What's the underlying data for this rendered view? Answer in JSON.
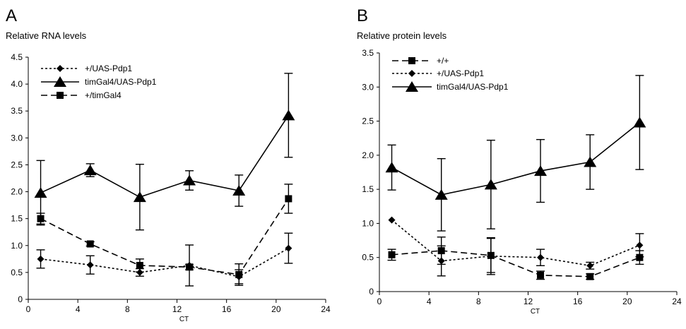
{
  "chart_data": [
    {
      "type": "line",
      "panel_label": "A",
      "ylabel": "Relative RNA levels",
      "xlabel": "CT",
      "xlim": [
        0,
        24
      ],
      "ylim": [
        0,
        4.5
      ],
      "xticks": [
        "0",
        "4",
        "8",
        "12",
        "16",
        "20",
        "24"
      ],
      "yticks": [
        "0",
        "0.5",
        "1.0",
        "1.5",
        "2.0",
        "2.5",
        "3.0",
        "3.5",
        "4.0",
        "4.5"
      ],
      "grid": false,
      "legend_position": "top-left",
      "x": [
        1,
        5,
        9,
        13,
        17,
        21
      ],
      "series": [
        {
          "name": "+/UAS-Pdp1",
          "marker": "diamond",
          "dash": "dotted",
          "values": [
            0.75,
            0.64,
            0.5,
            0.63,
            0.42,
            0.95
          ],
          "errors": [
            0.17,
            0.17,
            0.07,
            0.38,
            0.13,
            0.28
          ]
        },
        {
          "name": "timGal4/UAS-Pdp1",
          "marker": "triangle",
          "dash": "solid",
          "values": [
            1.98,
            2.4,
            1.9,
            2.21,
            2.02,
            3.42
          ],
          "errors": [
            0.6,
            0.12,
            0.61,
            0.18,
            0.29,
            0.78
          ]
        },
        {
          "name": "+/timGal4",
          "marker": "square",
          "dash": "dashed",
          "values": [
            1.5,
            1.03,
            0.63,
            0.6,
            0.46,
            1.87
          ],
          "errors": [
            0.1,
            0.04,
            0.12,
            0.05,
            0.2,
            0.27
          ]
        }
      ]
    },
    {
      "type": "line",
      "panel_label": "B",
      "ylabel": "Relative protein levels",
      "xlabel": "CT",
      "xlim": [
        0,
        24
      ],
      "ylim": [
        0,
        3.5
      ],
      "xticks": [
        "0",
        "4",
        "8",
        "12",
        "16",
        "20",
        "24"
      ],
      "yticks": [
        "0",
        "0.5",
        "1.0",
        "1.5",
        "2.0",
        "2.5",
        "3.0",
        "3.5"
      ],
      "grid": false,
      "legend_position": "top-left",
      "x": [
        1,
        5,
        9,
        13,
        17,
        21
      ],
      "series": [
        {
          "name": "+/+",
          "marker": "square",
          "dash": "dashed",
          "values": [
            0.54,
            0.6,
            0.53,
            0.24,
            0.22,
            0.5
          ],
          "errors": [
            0.08,
            0.2,
            0.25,
            0.06,
            0.04,
            0.1
          ]
        },
        {
          "name": "+/UAS-Pdp1",
          "marker": "diamond",
          "dash": "dotted",
          "values": [
            1.05,
            0.45,
            0.52,
            0.5,
            0.38,
            0.68
          ],
          "errors": [
            0.0,
            0.22,
            0.27,
            0.12,
            0.05,
            0.17
          ]
        },
        {
          "name": "timGal4/UAS-Pdp1",
          "marker": "triangle",
          "dash": "solid",
          "values": [
            1.82,
            1.42,
            1.57,
            1.77,
            1.9,
            2.48
          ],
          "errors": [
            0.33,
            0.53,
            0.65,
            0.46,
            0.4,
            0.69
          ]
        }
      ]
    }
  ]
}
